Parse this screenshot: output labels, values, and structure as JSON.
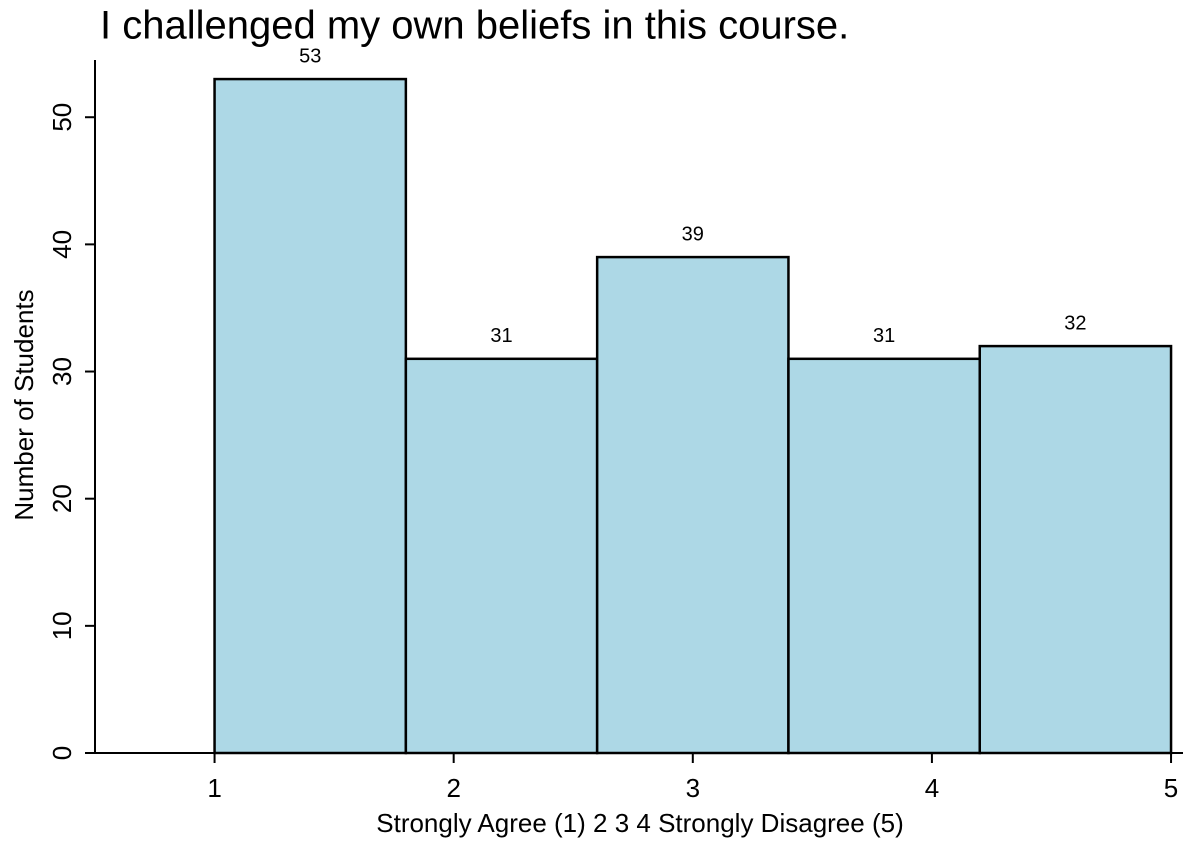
{
  "chart_data": {
    "type": "histogram",
    "title": "I challenged my own beliefs in this course.",
    "x_label": "Strongly Agree (1) 2 3 4 Strongly Disagree (5)",
    "y_label": "Number of Students",
    "bins": [
      1,
      1.8,
      2.6,
      3.4,
      4.2,
      5
    ],
    "values": [
      53,
      31,
      39,
      31,
      32
    ],
    "color": "#add8e6",
    "xlim": [
      0.5,
      5.05
    ],
    "xticks": [
      1,
      2,
      3,
      4,
      5
    ],
    "ylim": [
      0,
      54.5
    ],
    "yticks": [
      0,
      10,
      20,
      30,
      40,
      50
    ],
    "grid": false
  }
}
